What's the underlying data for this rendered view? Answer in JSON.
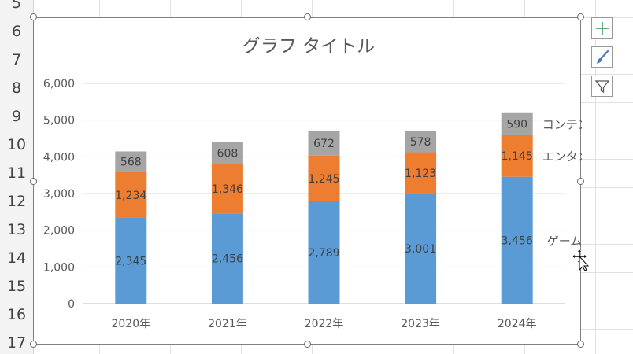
{
  "sheet": {
    "row_numbers": [
      "5",
      "6",
      "7",
      "8",
      "9",
      "10",
      "11",
      "12",
      "13",
      "14",
      "15",
      "16",
      "17"
    ]
  },
  "chart_data": {
    "type": "bar",
    "stacked": true,
    "title": "グラフ タイトル",
    "categories": [
      "2020年",
      "2021年",
      "2022年",
      "2023年",
      "2024年"
    ],
    "series": [
      {
        "name": "ゲーム事業",
        "color": "#5b9bd5",
        "values": [
          2345,
          2456,
          2789,
          3001,
          3456
        ],
        "labels": [
          "2,345",
          "2,456",
          "2,789",
          "3,001",
          "3,456"
        ]
      },
      {
        "name": "エンタメ事業",
        "color": "#ed7d31",
        "values": [
          1234,
          1346,
          1245,
          1123,
          1145
        ],
        "labels": [
          "1,234",
          "1,346",
          "1,245",
          "1,123",
          "1,145"
        ]
      },
      {
        "name": "コンテンツ事業",
        "color": "#a5a5a5",
        "values": [
          568,
          608,
          672,
          578,
          590
        ],
        "labels": [
          "568",
          "608",
          "672",
          "578",
          "590"
        ]
      }
    ],
    "yticks": [
      0,
      1000,
      2000,
      3000,
      4000,
      5000,
      6000
    ],
    "ytick_labels": [
      "0",
      "1,000",
      "2,000",
      "3,000",
      "4,000",
      "5,000",
      "6,000"
    ],
    "ylim": [
      0,
      6000
    ],
    "grid": true,
    "legend": "series names as labels beside the last column"
  },
  "chart_tools": {
    "add_element_icon": "plus-icon",
    "style_icon": "brush-icon",
    "filter_icon": "funnel-icon"
  }
}
